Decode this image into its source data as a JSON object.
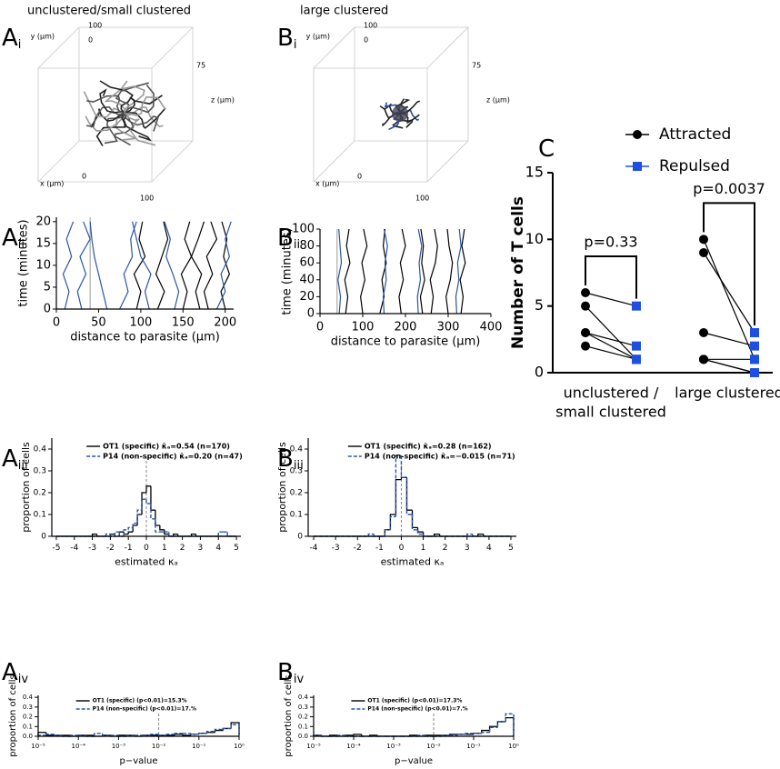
{
  "chart_data": [
    {
      "type": "scene3d",
      "panel": "A",
      "panel_index": "i",
      "title": "unclustered/small clustered",
      "labels": {
        "x": "x (μm)",
        "y": "y (μm)",
        "z": "z (μm)"
      },
      "tick_labels": {
        "y_top": 100,
        "y_zero": 0,
        "z_top": 75,
        "x_zero": 0,
        "x_top": 100
      }
    },
    {
      "type": "scene3d",
      "panel": "B",
      "panel_index": "i",
      "title": "large clustered",
      "labels": {
        "x": "x (μm)",
        "y": "y (μm)",
        "z": "z (μm)"
      },
      "tick_labels": {
        "y_top": 100,
        "y_zero": 0,
        "z_top": 75,
        "x_zero": 0,
        "x_top": 100
      }
    },
    {
      "type": "tracks",
      "panel": "A",
      "panel_index": "ii",
      "xlabel": "distance to parasite (μm)",
      "ylabel": "time (minutes)",
      "xlim": [
        0,
        210
      ],
      "xticks": [
        0,
        50,
        100,
        150,
        200
      ],
      "ylim": [
        0,
        21
      ],
      "yticks": [
        0,
        5,
        10,
        15,
        20
      ],
      "vline": 40,
      "times": [
        0,
        4,
        8,
        12,
        16,
        20
      ],
      "series": [
        {
          "color": "#000000",
          "values": [
            150,
            155,
            148,
            160,
            152,
            158
          ]
        },
        {
          "color": "#000000",
          "values": [
            180,
            175,
            185,
            178,
            190,
            183
          ]
        },
        {
          "color": "#000000",
          "values": [
            120,
            128,
            118,
            125,
            132,
            127
          ]
        },
        {
          "color": "#000000",
          "values": [
            200,
            195,
            205,
            198,
            202,
            196
          ]
        },
        {
          "color": "#000000",
          "values": [
            95,
            100,
            92,
            105,
            98,
            102
          ]
        },
        {
          "color": "#000000",
          "values": [
            170,
            165,
            172,
            160,
            168,
            175
          ]
        },
        {
          "color": "#2a55a8",
          "values": [
            30,
            25,
            35,
            28,
            40,
            32
          ]
        },
        {
          "color": "#2a55a8",
          "values": [
            60,
            55,
            50,
            45,
            42,
            40
          ]
        },
        {
          "color": "#2a55a8",
          "values": [
            110,
            105,
            112,
            100,
            95,
            90
          ]
        },
        {
          "color": "#2a55a8",
          "values": [
            140,
            145,
            138,
            130,
            135,
            128
          ]
        },
        {
          "color": "#2a55a8",
          "values": [
            190,
            200,
            195,
            205,
            200,
            207
          ]
        },
        {
          "color": "#2a55a8",
          "values": [
            10,
            15,
            8,
            18,
            12,
            20
          ]
        },
        {
          "color": "#2a55a8",
          "values": [
            75,
            85,
            80,
            90,
            88,
            95
          ]
        }
      ]
    },
    {
      "type": "tracks",
      "panel": "B",
      "panel_index": "ii",
      "xlabel": "distance to parasite (μm)",
      "ylabel": "time (minutes)",
      "xlim": [
        0,
        400
      ],
      "xticks": [
        0,
        100,
        200,
        300,
        400
      ],
      "ylim": [
        0,
        100
      ],
      "yticks": [
        0,
        20,
        40,
        60,
        80,
        100
      ],
      "vline": 40,
      "times": [
        0,
        20,
        40,
        60,
        80,
        100
      ],
      "series": [
        {
          "color": "#000000",
          "values": [
            60,
            65,
            58,
            70,
            62,
            68
          ]
        },
        {
          "color": "#000000",
          "values": [
            100,
            95,
            105,
            98,
            110,
            102
          ]
        },
        {
          "color": "#000000",
          "values": [
            140,
            150,
            145,
            155,
            148,
            152
          ]
        },
        {
          "color": "#000000",
          "values": [
            190,
            185,
            195,
            188,
            200,
            192
          ]
        },
        {
          "color": "#000000",
          "values": [
            240,
            235,
            245,
            238,
            242,
            236
          ]
        },
        {
          "color": "#000000",
          "values": [
            260,
            265,
            258,
            270,
            275,
            268
          ]
        },
        {
          "color": "#000000",
          "values": [
            300,
            295,
            305,
            310,
            302,
            298
          ]
        },
        {
          "color": "#000000",
          "values": [
            330,
            335,
            328,
            340,
            332,
            338
          ]
        },
        {
          "color": "#2a55a8",
          "values": [
            45,
            48,
            42,
            50,
            47,
            44
          ]
        },
        {
          "color": "#2a55a8",
          "values": [
            150,
            148,
            155,
            152,
            158,
            150
          ]
        },
        {
          "color": "#2a55a8",
          "values": [
            320,
            318,
            325,
            322,
            330,
            326
          ]
        },
        {
          "color": "#2a55a8",
          "values": [
            230,
            228,
            235,
            232,
            238,
            230
          ]
        }
      ]
    },
    {
      "type": "histogram",
      "panel": "A",
      "panel_index": "iii",
      "xlabel": "estimated κₐ",
      "ylabel": "proportion of cells",
      "xlim": [
        -5.25,
        5.25
      ],
      "xticks": [
        -5,
        -4,
        -3,
        -2,
        -1,
        0,
        1,
        2,
        3,
        4,
        5
      ],
      "ylim": [
        0,
        0.45
      ],
      "yticks": [
        0,
        0.1,
        0.2,
        0.3,
        0.4
      ],
      "vline": 0,
      "bins": [
        -5,
        -4.75,
        -4.5,
        -4.25,
        -4,
        -3.75,
        -3.5,
        -3.25,
        -3,
        -2.75,
        -2.5,
        -2.25,
        -2,
        -1.75,
        -1.5,
        -1.25,
        -1,
        -0.75,
        -0.5,
        -0.25,
        0,
        0.25,
        0.5,
        0.75,
        1,
        1.25,
        1.5,
        1.75,
        2,
        2.25,
        2.5,
        2.75,
        3,
        3.25,
        3.5,
        3.75,
        4,
        4.25,
        4.5,
        4.75,
        5
      ],
      "series": [
        {
          "name": "OT1 (specific) κ̄ₐ=0.54 (n=170)",
          "color": "#000000",
          "dashed": false,
          "values": [
            0,
            0,
            0,
            0,
            0,
            0,
            0,
            0,
            0.01,
            0,
            0,
            0,
            0.01,
            0,
            0.02,
            0.01,
            0.02,
            0.05,
            0.1,
            0.2,
            0.23,
            0.12,
            0.05,
            0.03,
            0.01,
            0,
            0.01,
            0,
            0,
            0,
            0.01,
            0,
            0,
            0,
            0,
            0,
            0,
            0,
            0,
            0
          ]
        },
        {
          "name": "P14 (non-specific) κ̄ₐ=0.20 (n=47)",
          "color": "#2a55a8",
          "dashed": true,
          "values": [
            0,
            0,
            0,
            0,
            0,
            0,
            0,
            0,
            0,
            0,
            0,
            0.01,
            0,
            0.02,
            0,
            0.03,
            0.04,
            0.06,
            0.12,
            0.17,
            0.15,
            0.08,
            0.02,
            0.02,
            0.02,
            0,
            0,
            0,
            0,
            0,
            0,
            0,
            0,
            0,
            0,
            0,
            0.02,
            0.02,
            0,
            0
          ]
        }
      ]
    },
    {
      "type": "histogram",
      "panel": "B",
      "panel_index": "iii",
      "xlabel": "estimated κₐ",
      "ylabel": "proportion of cells",
      "xlim": [
        -4.25,
        5.25
      ],
      "xticks": [
        -4,
        -3,
        -2,
        -1,
        0,
        1,
        2,
        3,
        4,
        5
      ],
      "ylim": [
        0,
        0.45
      ],
      "yticks": [
        0,
        0.1,
        0.2,
        0.3,
        0.4
      ],
      "vline": 0,
      "bins": [
        -4,
        -3.75,
        -3.5,
        -3.25,
        -3,
        -2.75,
        -2.5,
        -2.25,
        -2,
        -1.75,
        -1.5,
        -1.25,
        -1,
        -0.75,
        -0.5,
        -0.25,
        0,
        0.25,
        0.5,
        0.75,
        1,
        1.25,
        1.5,
        1.75,
        2,
        2.25,
        2.5,
        2.75,
        3,
        3.25,
        3.5,
        3.75,
        4,
        4.25,
        4.5,
        4.75,
        5
      ],
      "series": [
        {
          "name": "OT1 (specific) κ̄ₐ=0.28 (n=162)",
          "color": "#000000",
          "dashed": false,
          "values": [
            0,
            0,
            0,
            0,
            0,
            0,
            0,
            0,
            0,
            0,
            0,
            0,
            0,
            0.03,
            0.1,
            0.26,
            0.27,
            0.12,
            0.04,
            0.02,
            0,
            0,
            0.01,
            0,
            0,
            0,
            0,
            0,
            0,
            0,
            0.01,
            0,
            0,
            0,
            0,
            0
          ]
        },
        {
          "name": "P14 (non-specific) κ̄ₐ=−0.015 (n=71)",
          "color": "#2a55a8",
          "dashed": true,
          "values": [
            0,
            0,
            0,
            0,
            0,
            0,
            0,
            0,
            0,
            0,
            0.01,
            0,
            0,
            0.03,
            0.09,
            0.37,
            0.27,
            0.1,
            0.03,
            0.01,
            0,
            0,
            0,
            0,
            0,
            0,
            0,
            0,
            0.01,
            0,
            0,
            0,
            0,
            0,
            0,
            0
          ]
        }
      ]
    },
    {
      "type": "histogram",
      "panel": "A",
      "panel_index": "iv",
      "xlabel": "p−value",
      "ylabel": "proportion of cells",
      "log_x": true,
      "xlim": [
        1e-05,
        1
      ],
      "xticks": [
        {
          "value": 1e-05,
          "label": "10⁻⁵"
        },
        {
          "value": 0.0001,
          "label": "10⁻⁴"
        },
        {
          "value": 0.001,
          "label": "10⁻³"
        },
        {
          "value": 0.01,
          "label": "10⁻²"
        },
        {
          "value": 0.1,
          "label": "10⁻¹"
        },
        {
          "value": 1,
          "label": "10⁰"
        }
      ],
      "ylim": [
        0,
        0.42
      ],
      "yticks": [
        {
          "value": 0,
          "label": "0.0"
        },
        0.1,
        0.2,
        0.3,
        0.4
      ],
      "vline": 0.01,
      "bins": [
        1e-05,
        1.58e-05,
        2.51e-05,
        3.98e-05,
        6.31e-05,
        0.0001,
        0.000158,
        0.000251,
        0.000398,
        0.000631,
        0.001,
        0.00158,
        0.00251,
        0.00398,
        0.00631,
        0.01,
        0.0158,
        0.0251,
        0.0398,
        0.0631,
        0.1,
        0.158,
        0.251,
        0.398,
        0.631,
        1
      ],
      "series": [
        {
          "name": "OT1 (specific) (p<0.01)=15.3%",
          "color": "#000000",
          "dashed": false,
          "values": [
            0.04,
            0.01,
            0.01,
            0.01,
            0,
            0.01,
            0.01,
            0,
            0.01,
            0,
            0.01,
            0.01,
            0,
            0.01,
            0.01,
            0.01,
            0.01,
            0.02,
            0.01,
            0.02,
            0.03,
            0.04,
            0.06,
            0.08,
            0.14
          ]
        },
        {
          "name": "P14 (non-specific) (p<0.01)=17.%",
          "color": "#2a55a8",
          "dashed": true,
          "values": [
            0.01,
            0.02,
            0.01,
            0,
            0.01,
            0.01,
            0,
            0.03,
            0.01,
            0.01,
            0,
            0.01,
            0.01,
            0.01,
            0.02,
            0.01,
            0.02,
            0.03,
            0.03,
            0.02,
            0.03,
            0.05,
            0.07,
            0.08,
            0.12
          ]
        }
      ]
    },
    {
      "type": "histogram",
      "panel": "B",
      "panel_index": "iv",
      "xlabel": "p−value",
      "ylabel": "proportion of cells",
      "log_x": true,
      "xlim": [
        1e-05,
        1
      ],
      "xticks": [
        {
          "value": 1e-05,
          "label": "10⁻⁵"
        },
        {
          "value": 0.0001,
          "label": "10⁻⁴"
        },
        {
          "value": 0.001,
          "label": "10⁻³"
        },
        {
          "value": 0.01,
          "label": "10⁻²"
        },
        {
          "value": 0.1,
          "label": "10⁻¹"
        },
        {
          "value": 1,
          "label": "10⁰"
        }
      ],
      "ylim": [
        0,
        0.42
      ],
      "yticks": [
        {
          "value": 0,
          "label": "0.0"
        },
        0.1,
        0.2,
        0.3,
        0.4
      ],
      "vline": 0.01,
      "bins": [
        1e-05,
        1.58e-05,
        2.51e-05,
        3.98e-05,
        6.31e-05,
        0.0001,
        0.000158,
        0.000251,
        0.000398,
        0.000631,
        0.001,
        0.00158,
        0.00251,
        0.00398,
        0.00631,
        0.01,
        0.0158,
        0.0251,
        0.0398,
        0.0631,
        0.1,
        0.158,
        0.251,
        0.398,
        0.631,
        1
      ],
      "series": [
        {
          "name": "OT1 (specific) (p<0.01)=17.3%",
          "color": "#000000",
          "dashed": false,
          "values": [
            0.01,
            0,
            0.01,
            0,
            0.01,
            0.02,
            0,
            0.01,
            0,
            0,
            0,
            0,
            0.01,
            0,
            0.01,
            0.01,
            0.01,
            0.02,
            0.02,
            0.02,
            0.03,
            0.06,
            0.1,
            0.15,
            0.19
          ]
        },
        {
          "name": "P14 (non-specific) (p<0.01)=7.%",
          "color": "#2a55a8",
          "dashed": true,
          "values": [
            0.01,
            0,
            0,
            0.01,
            0,
            0,
            0,
            0,
            0,
            0,
            0,
            0,
            0,
            0.01,
            0,
            0,
            0.01,
            0.01,
            0.02,
            0.03,
            0.03,
            0.04,
            0.09,
            0.15,
            0.23
          ]
        }
      ]
    },
    {
      "type": "paired",
      "panel": "C",
      "ylabel": "Number of T cells",
      "ylim": [
        0,
        15
      ],
      "yticks": [
        0,
        5,
        10,
        15
      ],
      "categories": [
        [
          "unclustered /",
          "small clustered"
        ],
        [
          "large clustered"
        ]
      ],
      "annotations": [
        "p=0.33",
        "p=0.0037"
      ],
      "series": [
        {
          "name": "Attracted",
          "color": "#000000",
          "marker": "circle",
          "values": [
            [
              6,
              5,
              3,
              2,
              3
            ],
            [
              10,
              9,
              3,
              1,
              1,
              1
            ]
          ]
        },
        {
          "name": "Repulsed",
          "color": "#1f4fe0",
          "marker": "square",
          "values": [
            [
              5,
              1,
              2,
              1,
              1
            ],
            [
              1,
              3,
              2,
              0,
              0,
              1
            ]
          ]
        }
      ]
    }
  ]
}
